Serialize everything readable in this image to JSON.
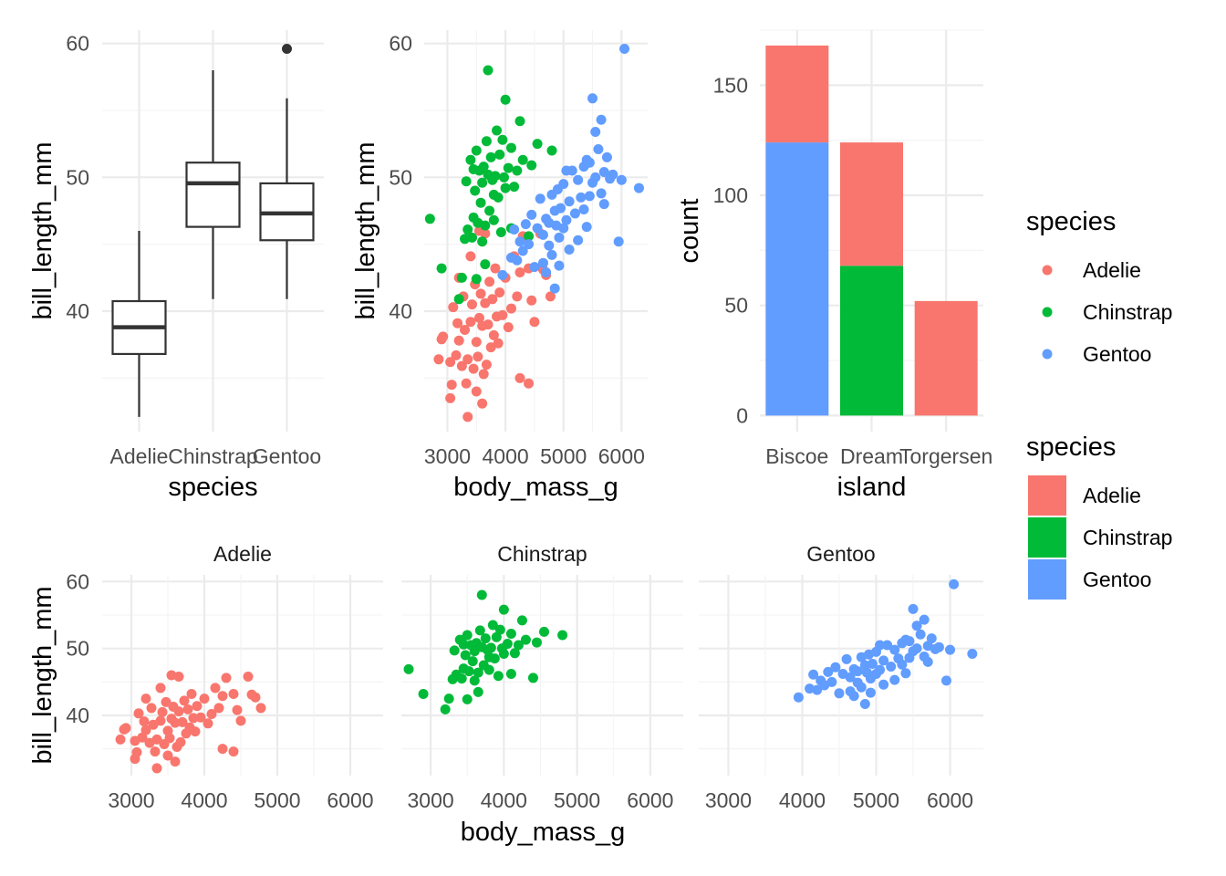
{
  "colors": {
    "Adelie": "#F8766D",
    "Chinstrap": "#00BA38",
    "Gentoo": "#619CFF",
    "box": "#333333"
  },
  "chart_data": [
    {
      "id": "boxplot",
      "type": "boxplot",
      "xlabel": "species",
      "ylabel": "bill_length_mm",
      "categories": [
        "Adelie",
        "Chinstrap",
        "Gentoo"
      ],
      "ylim": [
        31,
        61
      ],
      "yticks": [
        40,
        50,
        60
      ],
      "grid": true,
      "boxes": [
        {
          "category": "Adelie",
          "min": 32.1,
          "q1": 36.8,
          "median": 38.8,
          "q3": 40.75,
          "max": 46.0,
          "outliers": []
        },
        {
          "category": "Chinstrap",
          "min": 40.9,
          "q1": 46.3,
          "median": 49.55,
          "q3": 51.1,
          "max": 58.0,
          "outliers": []
        },
        {
          "category": "Gentoo",
          "min": 40.9,
          "q1": 45.3,
          "median": 47.3,
          "q3": 49.55,
          "max": 55.9,
          "outliers": [
            59.6
          ]
        }
      ]
    },
    {
      "id": "scatter",
      "type": "scatter",
      "xlabel": "body_mass_g",
      "ylabel": "bill_length_mm",
      "xlim": [
        2600,
        6450
      ],
      "ylim": [
        31,
        61
      ],
      "xticks": [
        3000,
        4000,
        5000,
        6000
      ],
      "yticks": [
        40,
        50,
        60
      ],
      "grid": true,
      "series": [
        {
          "name": "Adelie",
          "points": [
            [
              2850,
              36.4
            ],
            [
              2900,
              37.9
            ],
            [
              2925,
              38.1
            ],
            [
              3050,
              33.5
            ],
            [
              3050,
              36.2
            ],
            [
              3075,
              34.5
            ],
            [
              3150,
              36.7
            ],
            [
              3175,
              39.1
            ],
            [
              3200,
              37.8
            ],
            [
              3250,
              35.9
            ],
            [
              3275,
              41.1
            ],
            [
              3300,
              38.6
            ],
            [
              3325,
              34.6
            ],
            [
              3350,
              36.4
            ],
            [
              3400,
              39.2
            ],
            [
              3425,
              40.5
            ],
            [
              3450,
              35.7
            ],
            [
              3475,
              42.0
            ],
            [
              3500,
              37.7
            ],
            [
              3525,
              36.6
            ],
            [
              3550,
              39.5
            ],
            [
              3575,
              41.3
            ],
            [
              3600,
              38.9
            ],
            [
              3625,
              35.3
            ],
            [
              3650,
              40.6
            ],
            [
              3675,
              36.0
            ],
            [
              3700,
              39.0
            ],
            [
              3725,
              42.2
            ],
            [
              3750,
              37.3
            ],
            [
              3775,
              40.9
            ],
            [
              3800,
              38.2
            ],
            [
              3825,
              43.2
            ],
            [
              3850,
              39.6
            ],
            [
              3875,
              37.6
            ],
            [
              3900,
              41.4
            ],
            [
              3950,
              39.7
            ],
            [
              4000,
              42.5
            ],
            [
              4050,
              38.8
            ],
            [
              4100,
              40.2
            ],
            [
              4150,
              44.1
            ],
            [
              4200,
              41.1
            ],
            [
              4250,
              42.9
            ],
            [
              4300,
              45.6
            ],
            [
              4400,
              43.2
            ],
            [
              4450,
              40.8
            ],
            [
              4500,
              39.2
            ],
            [
              4600,
              45.8
            ],
            [
              4650,
              43.1
            ],
            [
              4700,
              42.7
            ],
            [
              4775,
              41.1
            ],
            [
              3350,
              32.1
            ],
            [
              3500,
              34.0
            ],
            [
              3650,
              45.8
            ],
            [
              4250,
              35.0
            ],
            [
              4400,
              34.6
            ],
            [
              3100,
              40.3
            ],
            [
              3200,
              42.5
            ],
            [
              3400,
              44.1
            ],
            [
              3600,
              33.1
            ],
            [
              3550,
              46.0
            ]
          ]
        },
        {
          "name": "Chinstrap",
          "points": [
            [
              2700,
              46.9
            ],
            [
              2900,
              43.2
            ],
            [
              3200,
              40.9
            ],
            [
              3250,
              42.5
            ],
            [
              3300,
              45.4
            ],
            [
              3325,
              49.7
            ],
            [
              3350,
              46.1
            ],
            [
              3400,
              51.3
            ],
            [
              3425,
              45.5
            ],
            [
              3450,
              47.0
            ],
            [
              3475,
              49.0
            ],
            [
              3500,
              52.0
            ],
            [
              3525,
              46.6
            ],
            [
              3550,
              50.5
            ],
            [
              3575,
              48.1
            ],
            [
              3600,
              45.2
            ],
            [
              3625,
              50.8
            ],
            [
              3650,
              46.4
            ],
            [
              3675,
              52.7
            ],
            [
              3700,
              50.2
            ],
            [
              3725,
              47.5
            ],
            [
              3750,
              51.5
            ],
            [
              3775,
              49.8
            ],
            [
              3800,
              46.8
            ],
            [
              3825,
              50.1
            ],
            [
              3850,
              53.5
            ],
            [
              3875,
              48.5
            ],
            [
              3900,
              51.7
            ],
            [
              3925,
              45.9
            ],
            [
              3950,
              52.8
            ],
            [
              3975,
              50.0
            ],
            [
              4000,
              49.2
            ],
            [
              4050,
              50.7
            ],
            [
              4100,
              46.2
            ],
            [
              4150,
              49.3
            ],
            [
              4200,
              50.5
            ],
            [
              4250,
              54.2
            ],
            [
              4300,
              51.3
            ],
            [
              4400,
              45.6
            ],
            [
              4450,
              50.9
            ],
            [
              4550,
              52.5
            ],
            [
              4800,
              52.0
            ],
            [
              3700,
              58.0
            ],
            [
              4000,
              55.8
            ],
            [
              3500,
              42.4
            ],
            [
              3650,
              43.5
            ],
            [
              3800,
              48.7
            ],
            [
              4100,
              52.2
            ],
            [
              3600,
              49.6
            ],
            [
              3450,
              50.6
            ]
          ]
        },
        {
          "name": "Gentoo",
          "points": [
            [
              3950,
              42.7
            ],
            [
              4100,
              44.0
            ],
            [
              4150,
              46.1
            ],
            [
              4200,
              43.8
            ],
            [
              4250,
              45.2
            ],
            [
              4300,
              44.5
            ],
            [
              4350,
              46.5
            ],
            [
              4400,
              45.0
            ],
            [
              4450,
              47.2
            ],
            [
              4500,
              43.3
            ],
            [
              4550,
              46.2
            ],
            [
              4600,
              48.4
            ],
            [
              4650,
              45.7
            ],
            [
              4700,
              46.9
            ],
            [
              4750,
              44.9
            ],
            [
              4800,
              48.7
            ],
            [
              4850,
              47.5
            ],
            [
              4875,
              46.4
            ],
            [
              4900,
              49.1
            ],
            [
              4925,
              45.5
            ],
            [
              4950,
              47.7
            ],
            [
              5000,
              49.5
            ],
            [
              5050,
              46.8
            ],
            [
              5100,
              48.2
            ],
            [
              5150,
              50.5
            ],
            [
              5200,
              47.3
            ],
            [
              5250,
              49.8
            ],
            [
              5300,
              48.5
            ],
            [
              5350,
              50.8
            ],
            [
              5400,
              46.3
            ],
            [
              5450,
              51.1
            ],
            [
              5500,
              49.6
            ],
            [
              5550,
              50.0
            ],
            [
              5600,
              52.1
            ],
            [
              5650,
              48.8
            ],
            [
              5700,
              50.4
            ],
            [
              5750,
              51.5
            ],
            [
              5800,
              49.9
            ],
            [
              5850,
              50.2
            ],
            [
              5950,
              45.2
            ],
            [
              6000,
              49.8
            ],
            [
              6050,
              59.6
            ],
            [
              6300,
              49.2
            ],
            [
              5500,
              55.9
            ],
            [
              5650,
              54.3
            ],
            [
              4700,
              42.9
            ],
            [
              4800,
              44.2
            ],
            [
              4850,
              41.7
            ],
            [
              4650,
              43.6
            ],
            [
              5000,
              46.2
            ],
            [
              5100,
              44.6
            ],
            [
              5250,
              45.3
            ],
            [
              5350,
              47.6
            ],
            [
              5450,
              48.6
            ],
            [
              5550,
              53.4
            ],
            [
              5050,
              50.5
            ],
            [
              4750,
              46.6
            ],
            [
              4925,
              43.4
            ],
            [
              5400,
              51.3
            ],
            [
              5700,
              48.0
            ]
          ]
        }
      ]
    },
    {
      "id": "bar",
      "type": "bar",
      "stacked": true,
      "xlabel": "island",
      "ylabel": "count",
      "categories": [
        "Biscoe",
        "Dream",
        "Torgersen"
      ],
      "ylim": [
        0,
        175
      ],
      "yticks": [
        0,
        50,
        100,
        150
      ],
      "grid": true,
      "series": [
        {
          "name": "Adelie",
          "values": [
            44,
            56,
            52
          ]
        },
        {
          "name": "Chinstrap",
          "values": [
            0,
            68,
            0
          ]
        },
        {
          "name": "Gentoo",
          "values": [
            124,
            0,
            0
          ]
        }
      ]
    },
    {
      "id": "facets",
      "type": "scatter",
      "faceted": true,
      "facets": [
        "Adelie",
        "Chinstrap",
        "Gentoo"
      ],
      "xlabel": "body_mass_g",
      "ylabel": "bill_length_mm",
      "xlim": [
        2600,
        6450
      ],
      "ylim": [
        31,
        61
      ],
      "xticks": [
        3000,
        4000,
        5000,
        6000
      ],
      "yticks": [
        40,
        50,
        60
      ],
      "grid": true
    }
  ],
  "legends": [
    {
      "title": "species",
      "kind": "point",
      "items": [
        "Adelie",
        "Chinstrap",
        "Gentoo"
      ]
    },
    {
      "title": "species",
      "kind": "fill",
      "items": [
        "Adelie",
        "Chinstrap",
        "Gentoo"
      ]
    }
  ]
}
